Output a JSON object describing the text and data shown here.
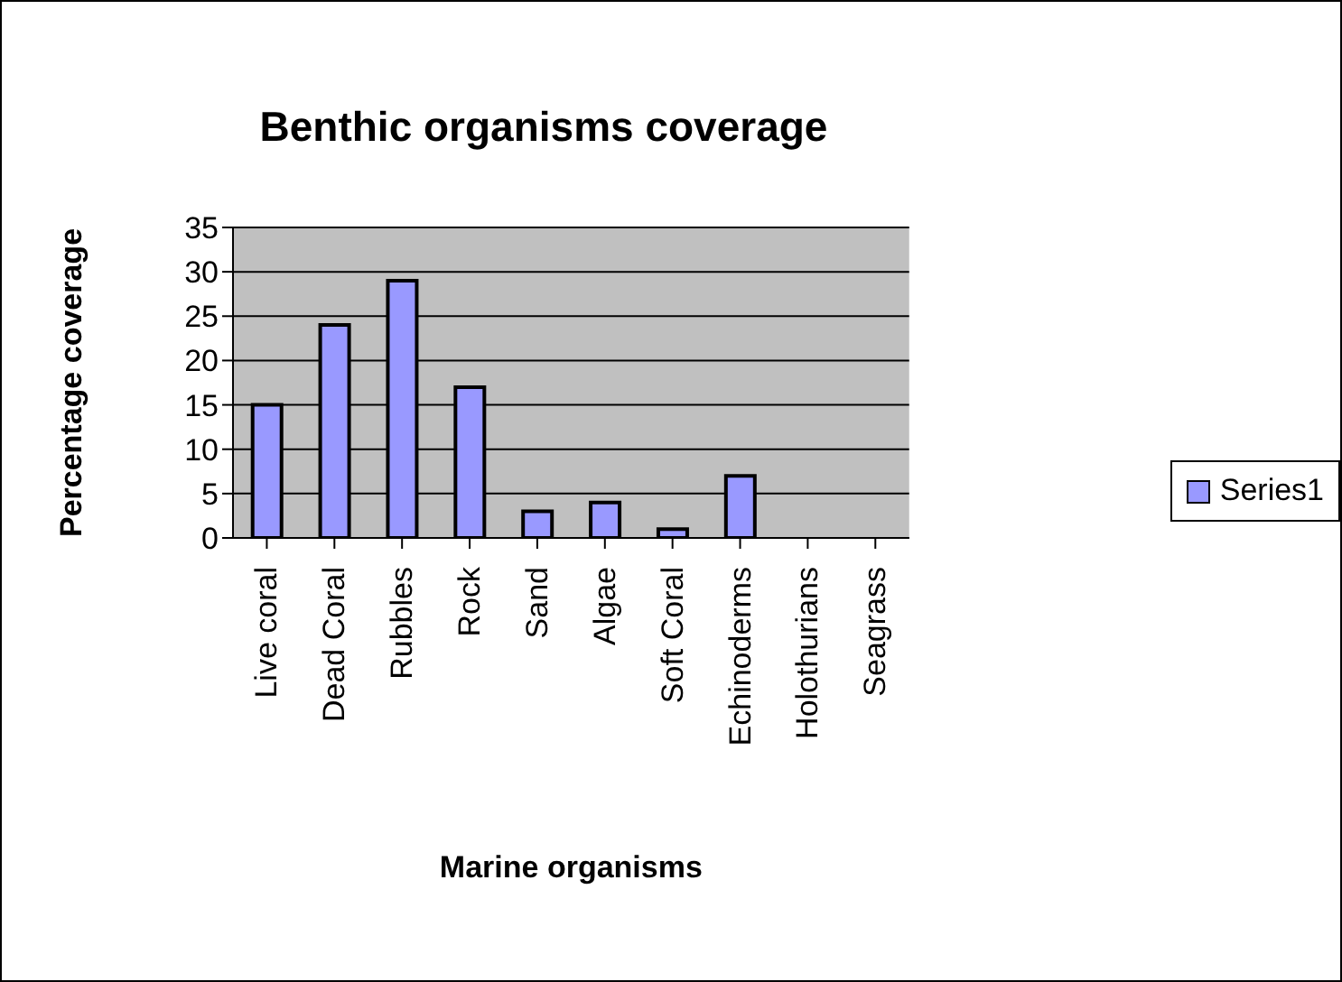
{
  "chart_data": {
    "type": "bar",
    "title": "Benthic organisms coverage",
    "xlabel": "Marine organisms",
    "ylabel": "Percentage coverage",
    "categories": [
      "Live coral",
      "Dead Coral",
      "Rubbles",
      "Rock",
      "Sand",
      "Algae",
      "Soft Coral",
      "Echinoderms",
      "Holothurians",
      "Seagrass"
    ],
    "series": [
      {
        "name": "Series1",
        "color": "#9999ff",
        "values": [
          15,
          24,
          29,
          17,
          3,
          4,
          1,
          7,
          0,
          0
        ]
      }
    ],
    "ylim": [
      0,
      35
    ],
    "yticks": [
      0,
      5,
      10,
      15,
      20,
      25,
      30,
      35
    ],
    "grid": "y",
    "legend": "right"
  }
}
